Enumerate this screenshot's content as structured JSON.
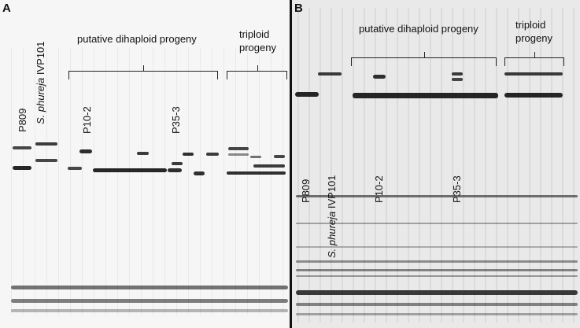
{
  "panel_a": {
    "label": "A",
    "group_label_dihaploid": "putative dihaploid progeny",
    "group_label_triploid_line1": "triploid",
    "group_label_triploid_line2": "progeny",
    "lane_label_p809": "P809",
    "lane_label_phureja_italic": "S. phureja",
    "lane_label_phureja_rest": " IVP101",
    "lane_label_p10": "P10-2",
    "lane_label_p35": "P35-3"
  },
  "panel_b": {
    "label": "B",
    "group_label_dihaploid": "putative dihaploid progeny",
    "group_label_triploid_line1": "triploid",
    "group_label_triploid_line2": "progeny",
    "lane_label_p809": "P809",
    "lane_label_phureja_italic": "S. phureja",
    "lane_label_phureja_rest": " IVP101",
    "lane_label_p10": "P10-2",
    "lane_label_p35": "P35-3"
  },
  "colors": {
    "band": "#1a1a1a",
    "gel_a": "#f6f6f6",
    "gel_b": "#e9e9e9"
  }
}
